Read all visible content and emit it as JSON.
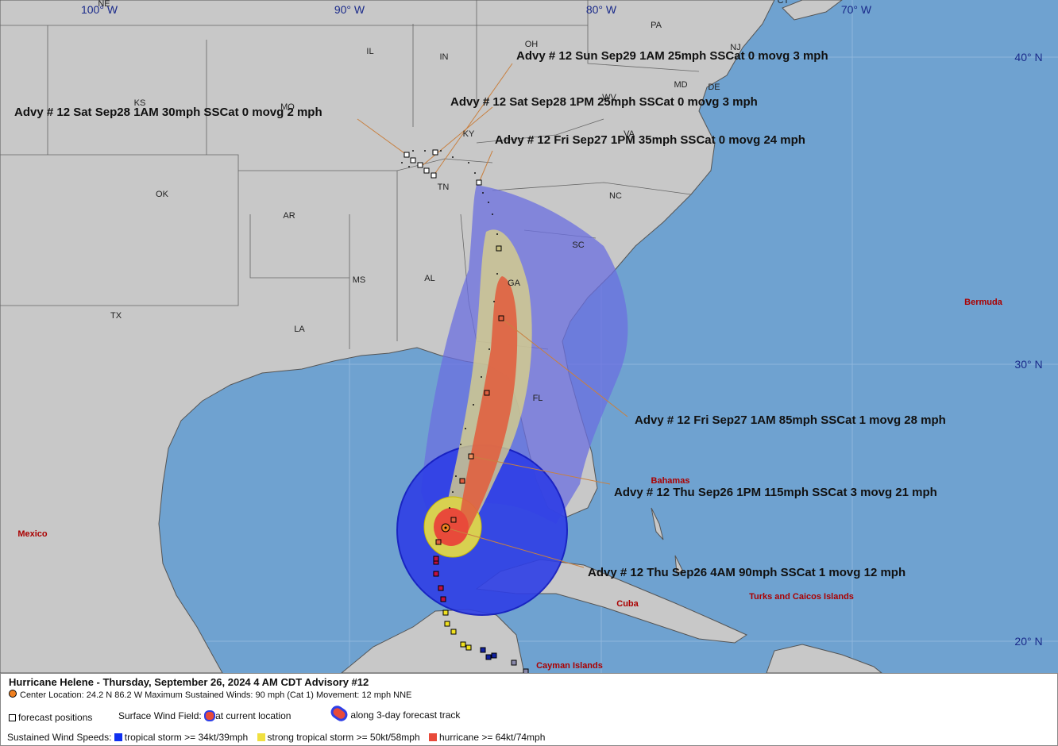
{
  "grid_labels": {
    "longitude": [
      "100° W",
      "90° W",
      "80° W",
      "70° W"
    ],
    "latitude": [
      "40° N",
      "30° N",
      "20° N"
    ]
  },
  "state_labels": [
    "NE",
    "IL",
    "IN",
    "OH",
    "PA",
    "NJ",
    "DE",
    "MD",
    "WV",
    "VA",
    "KS",
    "MO",
    "KY",
    "TN",
    "NC",
    "SC",
    "OK",
    "AR",
    "MS",
    "AL",
    "GA",
    "TX",
    "LA",
    "FL",
    "CT"
  ],
  "place_labels": [
    "Bermuda",
    "Mexico",
    "Bahamas",
    "Cuba",
    "Turks and Caicos Islands",
    "Cayman Islands"
  ],
  "advisories": [
    "Advy # 12 Sun Sep29 1AM  25mph SSCat 0 movg 3 mph",
    "Advy # 12 Sat Sep28 1PM  25mph SSCat 0 movg 3 mph",
    "Advy # 12 Sat Sep28 1AM  30mph SSCat 0 movg 2 mph",
    "Advy # 12 Fri Sep27 1PM  35mph SSCat 0 movg 24 mph",
    "Advy # 12 Fri Sep27 1AM  85mph SSCat 1 movg 28 mph",
    "Advy # 12 Thu Sep26 1PM  115mph SSCat 3 movg 21 mph",
    "Advy # 12 Thu Sep26 4AM  90mph SSCat 1 movg 12 mph"
  ],
  "legend": {
    "title": "Hurricane Helene  -  Thursday, September 26, 2024  4 AM CDT   Advisory #12",
    "info": "Center Location: 24.2 N  86.2 W   Maximum Sustained Winds: 90 mph (Cat 1)  Movement: 12 mph NNE",
    "forecast_positions": "forecast positions",
    "wind_field": "Surface Wind Field:",
    "current": "at current location",
    "track": "along 3-day forecast track",
    "speeds": "Sustained Wind Speeds:",
    "tropical_storm": "tropical storm >= 34kt/39mph",
    "strong_tropical_storm": "strong tropical storm >= 50kt/58mph",
    "hurricane": "hurricane >= 64kt/74mph"
  }
}
